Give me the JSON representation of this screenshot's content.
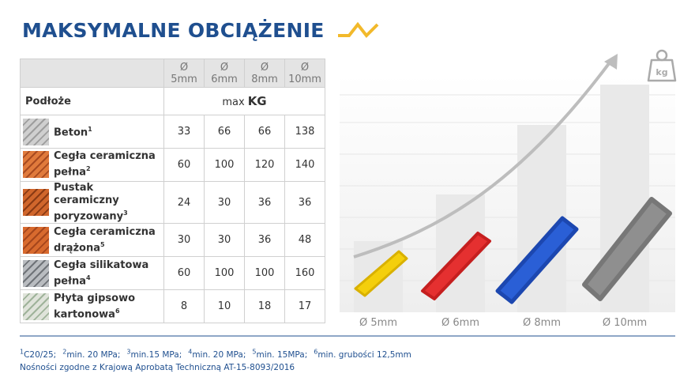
{
  "header": {
    "title": "MAKSYMALNE OBCIĄŻENIE"
  },
  "table": {
    "columns": [
      {
        "symbol": "Ø",
        "size": "5mm"
      },
      {
        "symbol": "Ø",
        "size": "6mm"
      },
      {
        "symbol": "Ø",
        "size": "8mm"
      },
      {
        "symbol": "Ø",
        "size": "10mm"
      }
    ],
    "substrate_label": "Podłoże",
    "unit_prefix": "max",
    "unit": "KG",
    "rows": [
      {
        "name": "Beton",
        "note": "1",
        "values": [
          33,
          66,
          66,
          138
        ]
      },
      {
        "name": "Cegła ceramiczna pełna",
        "note": "2",
        "values": [
          60,
          100,
          120,
          140
        ]
      },
      {
        "name": "Pustak ceramiczny poryzowany",
        "note": "3",
        "values": [
          24,
          30,
          36,
          36
        ]
      },
      {
        "name": "Cegła ceramiczna drążona",
        "note": "5",
        "values": [
          30,
          30,
          36,
          48
        ]
      },
      {
        "name": "Cegła silikatowa pełna",
        "note": "4",
        "values": [
          60,
          100,
          100,
          160
        ]
      },
      {
        "name": "Płyta gipsowo kartonowa",
        "note": "6",
        "values": [
          8,
          10,
          18,
          17
        ]
      }
    ]
  },
  "illustration": {
    "labels": [
      "Ø 5mm",
      "Ø 6mm",
      "Ø 8mm",
      "Ø 10mm"
    ],
    "weight_icon": "kg"
  },
  "footnotes": {
    "items": [
      {
        "mark": "1",
        "text": "C20/25;"
      },
      {
        "mark": "2",
        "text": "min. 20 MPa;"
      },
      {
        "mark": "3",
        "text": "min.15 MPa;"
      },
      {
        "mark": "4",
        "text": "min. 20 MPa;"
      },
      {
        "mark": "5",
        "text": "min. 15MPa;"
      },
      {
        "mark": "6",
        "text": "min. grubości 12,5mm"
      }
    ],
    "approval": "Nośności zgodne z Krajową Aprobatą Techniczną AT-15-8093/2016"
  }
}
